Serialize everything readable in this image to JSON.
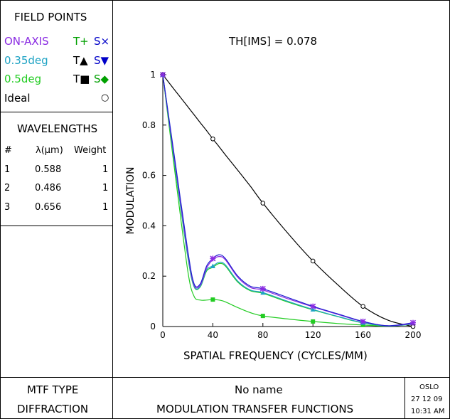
{
  "legend": {
    "title": "FIELD POINTS",
    "rows": [
      {
        "field": "ON-AXIS",
        "t_label": "T+",
        "s_label": "S×",
        "color": "#8a2be2",
        "t_color": "#00a000",
        "s_color": "#0000c8"
      },
      {
        "field": "0.35deg",
        "t_label": "T▲",
        "s_label": "S▼",
        "color": "#1fa3c4",
        "t_color": "#000000",
        "s_color": "#0000c8"
      },
      {
        "field": "0.5deg",
        "t_label": "T■",
        "s_label": "S◆",
        "color": "#22cc22",
        "t_color": "#000000",
        "s_color": "#00a000"
      },
      {
        "field": "Ideal",
        "t_label": "",
        "s_label": "○",
        "color": "#000000",
        "t_color": "#000000",
        "s_color": "#000000"
      }
    ]
  },
  "wavelengths": {
    "title": "WAVELENGTHS",
    "headers": [
      "#",
      "λ(μm)",
      "Weight"
    ],
    "rows": [
      {
        "n": "1",
        "lambda": "0.588",
        "weight": "1"
      },
      {
        "n": "2",
        "lambda": "0.486",
        "weight": "1"
      },
      {
        "n": "3",
        "lambda": "0.656",
        "weight": "1"
      }
    ]
  },
  "footer": {
    "mtf_type_label": "MTF TYPE",
    "mtf_type_value": "DIFFRACTION",
    "name": "No name",
    "plot_title": "MODULATION TRANSFER FUNCTIONS",
    "program": "OSLO",
    "date": "27 12 09",
    "time": "10:31 AM"
  },
  "chart_data": {
    "type": "line",
    "title": "TH[IMS] = 0.078",
    "xlabel": "SPATIAL FREQUENCY (CYCLES/MM)",
    "ylabel": "MODULATION",
    "xlim": [
      0,
      200
    ],
    "ylim": [
      0,
      1
    ],
    "xticks": [
      "0",
      "40",
      "80",
      "120",
      "160",
      "200"
    ],
    "yticks": [
      "0",
      "0.2",
      "0.4",
      "0.6",
      "0.8",
      "1"
    ],
    "x": [
      0,
      10,
      20,
      25,
      30,
      35,
      40,
      45,
      50,
      60,
      70,
      80,
      100,
      120,
      140,
      160,
      180,
      200
    ],
    "series": [
      {
        "name": "Ideal",
        "color": "#000000",
        "values": [
          1.0,
          0.936,
          0.873,
          0.841,
          0.809,
          0.778,
          0.745,
          0.714,
          0.682,
          0.62,
          0.557,
          0.49,
          0.37,
          0.26,
          0.165,
          0.08,
          0.025,
          0.0
        ],
        "marker_x": [
          0,
          40,
          80,
          120,
          160,
          200
        ],
        "marker": "circle"
      },
      {
        "name": "ON-AXIS S",
        "color": "#2020d0",
        "values": [
          1.0,
          0.65,
          0.3,
          0.17,
          0.17,
          0.24,
          0.27,
          0.285,
          0.27,
          0.2,
          0.16,
          0.15,
          0.115,
          0.08,
          0.05,
          0.02,
          0.003,
          0.015
        ],
        "marker_x": [
          0,
          40,
          80,
          120,
          160,
          200
        ],
        "marker": "cross"
      },
      {
        "name": "ON-AXIS T",
        "color": "#8a2be2",
        "values": [
          1.0,
          0.64,
          0.29,
          0.165,
          0.165,
          0.232,
          0.265,
          0.278,
          0.265,
          0.195,
          0.155,
          0.145,
          0.11,
          0.078,
          0.048,
          0.019,
          0.003,
          0.012
        ],
        "marker_x": [],
        "marker": "none"
      },
      {
        "name": "0.35deg",
        "color": "#1fa3c4",
        "values": [
          1.0,
          0.63,
          0.28,
          0.16,
          0.16,
          0.225,
          0.24,
          0.255,
          0.245,
          0.18,
          0.145,
          0.135,
          0.1,
          0.068,
          0.04,
          0.015,
          0.002,
          0.01
        ],
        "marker_x": [
          0,
          40,
          80,
          120,
          160
        ],
        "marker": "triangle"
      },
      {
        "name": "0.35deg S",
        "color": "#22cc22",
        "values": [
          1.0,
          0.625,
          0.275,
          0.158,
          0.158,
          0.22,
          0.235,
          0.25,
          0.24,
          0.176,
          0.142,
          0.132,
          0.097,
          0.066,
          0.039,
          0.014,
          0.002,
          0.009
        ],
        "marker_x": [],
        "marker": "none"
      },
      {
        "name": "0.5deg",
        "color": "#22cc22",
        "values": [
          1.0,
          0.6,
          0.22,
          0.12,
          0.105,
          0.105,
          0.107,
          0.105,
          0.098,
          0.075,
          0.055,
          0.042,
          0.03,
          0.02,
          0.012,
          0.006,
          0.002,
          0.01
        ],
        "marker_x": [
          40,
          80,
          120,
          160
        ],
        "marker": "square"
      }
    ],
    "grid": false,
    "legend": "left-panel"
  }
}
